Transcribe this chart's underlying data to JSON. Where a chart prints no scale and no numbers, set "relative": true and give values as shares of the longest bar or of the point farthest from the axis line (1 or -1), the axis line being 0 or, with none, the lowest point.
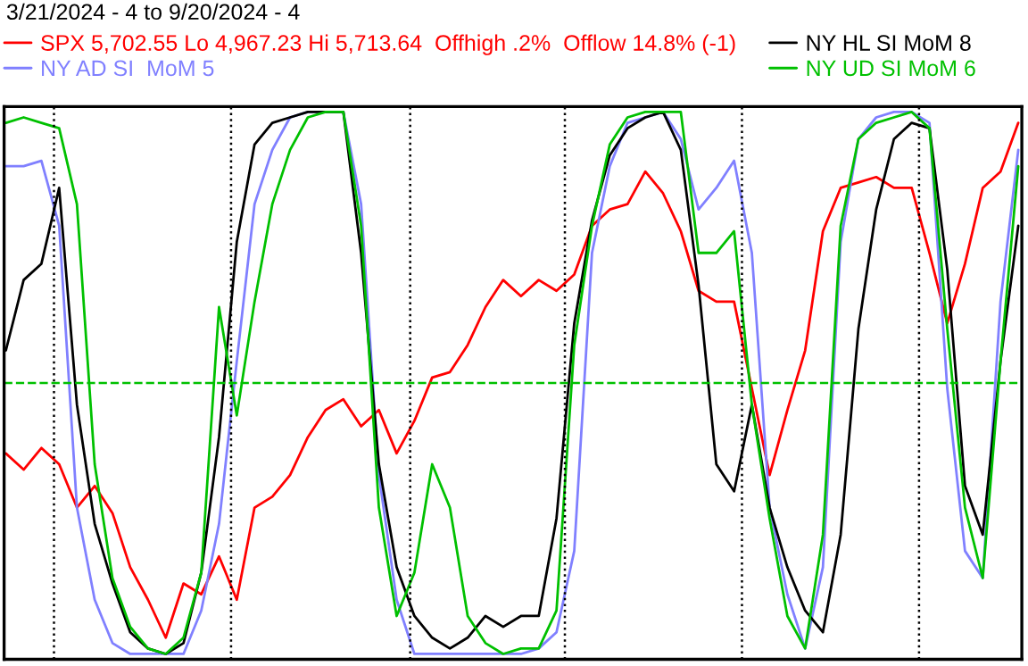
{
  "chart_data": {
    "type": "line",
    "title": "3/21/2024 - 4 to 9/20/2024 - 4",
    "relative": true,
    "categories": [
      null,
      null,
      null,
      null,
      null,
      null,
      null,
      null,
      null,
      null,
      null,
      null,
      null,
      null,
      null,
      null,
      null,
      null,
      null,
      null,
      null,
      null,
      null,
      null,
      null,
      null,
      null,
      null,
      null,
      null,
      null,
      null,
      null,
      null,
      null,
      null,
      null,
      null,
      null,
      null,
      null,
      null,
      null,
      null,
      null,
      null,
      null,
      null,
      null,
      null,
      null,
      null,
      null,
      null,
      null,
      null,
      null,
      null
    ],
    "series": [
      {
        "name": "SPX 5,702.55 Lo 4,967.23 Hi 5,713.64  Offhigh .2%  Offlow 14.8% (-1)",
        "color": "#ff0000",
        "values": [
          0.37,
          0.34,
          0.38,
          0.35,
          0.27,
          0.31,
          0.26,
          0.16,
          0.1,
          0.03,
          0.13,
          0.11,
          0.18,
          0.1,
          0.27,
          0.29,
          0.33,
          0.4,
          0.45,
          0.47,
          0.42,
          0.45,
          0.37,
          0.43,
          0.51,
          0.52,
          0.57,
          0.64,
          0.69,
          0.66,
          0.69,
          0.67,
          0.7,
          0.79,
          0.82,
          0.83,
          0.89,
          0.85,
          0.78,
          0.67,
          0.65,
          0.65,
          0.49,
          0.33,
          0.45,
          0.56,
          0.78,
          0.86,
          0.87,
          0.88,
          0.86,
          0.86,
          0.74,
          0.61,
          0.72,
          0.86,
          0.89,
          0.98
        ]
      },
      {
        "name": "NY AD SI  MoM 5",
        "color": "#8080ff",
        "values": [
          0.9,
          0.9,
          0.91,
          0.79,
          0.27,
          0.1,
          0.02,
          0,
          0,
          0,
          0,
          0.08,
          0.24,
          0.54,
          0.83,
          0.93,
          0.99,
          1,
          1,
          1,
          0.83,
          0.33,
          0.1,
          0,
          0,
          0,
          0,
          0,
          0,
          0,
          0.01,
          0.04,
          0.19,
          0.74,
          0.9,
          0.98,
          0.99,
          1,
          0.95,
          0.82,
          0.86,
          0.91,
          0.74,
          0.27,
          0.11,
          0.01,
          0.16,
          0.76,
          0.95,
          0.99,
          1,
          1,
          0.98,
          0.49,
          0.19,
          0.14,
          0.65,
          0.93
        ]
      },
      {
        "name": "NY HL SI MoM 8",
        "color": "#000000",
        "values": [
          0.56,
          0.69,
          0.72,
          0.86,
          0.46,
          0.24,
          0.13,
          0.04,
          0.01,
          0,
          0.02,
          0.15,
          0.4,
          0.76,
          0.94,
          0.98,
          0.99,
          1,
          1,
          1,
          0.74,
          0.35,
          0.16,
          0.07,
          0.03,
          0.01,
          0.03,
          0.07,
          0.05,
          0.07,
          0.07,
          0.25,
          0.61,
          0.8,
          0.92,
          0.97,
          0.99,
          1,
          0.93,
          0.68,
          0.35,
          0.3,
          0.46,
          0.27,
          0.16,
          0.08,
          0.04,
          0.22,
          0.6,
          0.82,
          0.95,
          0.98,
          0.97,
          0.71,
          0.31,
          0.22,
          0.54,
          0.79
        ]
      },
      {
        "name": "NY UD SI MoM 6",
        "color": "#00c000",
        "values": [
          0.98,
          0.99,
          0.98,
          0.97,
          0.83,
          0.35,
          0.14,
          0.05,
          0.01,
          0,
          0.03,
          0.15,
          0.64,
          0.44,
          0.65,
          0.83,
          0.93,
          0.99,
          1,
          1,
          0.79,
          0.27,
          0.07,
          0.15,
          0.35,
          0.27,
          0.07,
          0.02,
          0,
          0.01,
          0.01,
          0.08,
          0.57,
          0.79,
          0.94,
          0.99,
          1,
          1,
          1,
          0.74,
          0.74,
          0.78,
          0.46,
          0.25,
          0.07,
          0.01,
          0.22,
          0.79,
          0.95,
          0.98,
          0.99,
          1,
          0.97,
          0.6,
          0.27,
          0.14,
          0.54,
          0.9
        ]
      }
    ],
    "ref_lines": [
      {
        "axis": "y",
        "value": 0.5,
        "color": "#00c000",
        "line_style": "dashed"
      }
    ],
    "legend": "top",
    "marker": "none",
    "line_style": "solid"
  }
}
